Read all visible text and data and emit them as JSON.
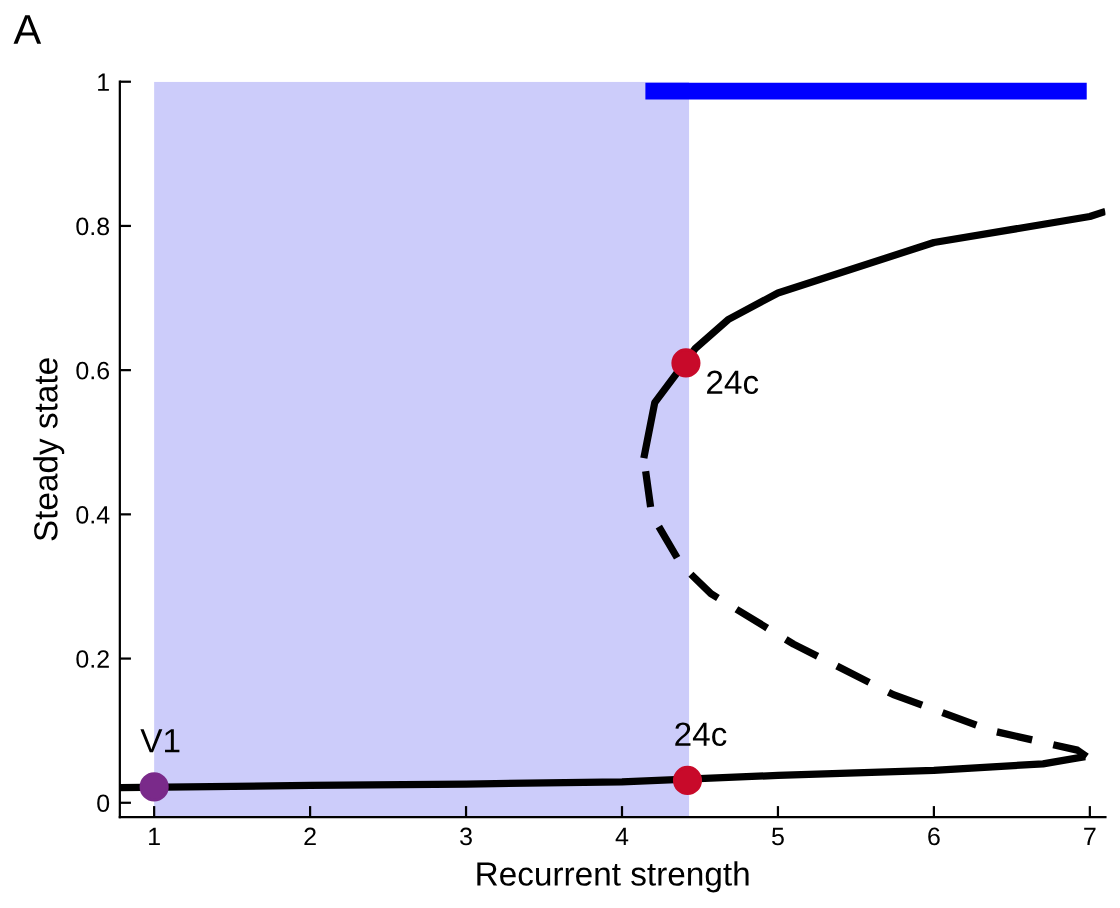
{
  "chart_data": {
    "type": "line",
    "xlabel": "Recurrent strength",
    "ylabel": "Steady state",
    "xlim": [
      0.78,
      7.1
    ],
    "ylim": [
      -0.02,
      1
    ],
    "xticks": [
      1,
      2,
      3,
      4,
      5,
      6,
      7
    ],
    "yticks": [
      0,
      0.2,
      0.4,
      0.6,
      0.8,
      1
    ],
    "grid": false,
    "legend": false,
    "bands": [
      {
        "axis": "x",
        "from": 1,
        "to": 4.43,
        "color": "#ccccfa"
      }
    ],
    "series": [
      {
        "color": "#000000",
        "line_style": "solid",
        "x": [
          0.78,
          2,
          3,
          4,
          5,
          6,
          6.7,
          6.97
        ],
        "values": [
          0.021,
          0.024,
          0.026,
          0.029,
          0.038,
          0.045,
          0.054,
          0.064
        ]
      },
      {
        "color": "#000000",
        "line_style": "dashed",
        "x": [
          6.98,
          6.92,
          6.37,
          5.74,
          5.1,
          4.57,
          4.38,
          4.19,
          4.14
        ],
        "values": [
          0.064,
          0.073,
          0.1,
          0.15,
          0.22,
          0.29,
          0.33,
          0.4,
          0.478
        ]
      },
      {
        "color": "#000000",
        "line_style": "solid",
        "x": [
          4.14,
          4.21,
          4.47,
          4.68,
          5,
          6,
          7,
          7.1
        ],
        "values": [
          0.478,
          0.555,
          0.63,
          0.67,
          0.707,
          0.777,
          0.813,
          0.82
        ]
      },
      {
        "color": "#0000ff",
        "line_style": "solid",
        "x": [
          4.15,
          6.98
        ],
        "values": [
          0.987,
          0.987
        ]
      },
      {
        "type": "scatter",
        "color": "#7a2a8a",
        "x": [
          1
        ],
        "values": [
          0.022
        ]
      },
      {
        "type": "scatter",
        "color": "#c80a2a",
        "x": [
          4.42,
          4.41
        ],
        "values": [
          0.031,
          0.61
        ]
      }
    ],
    "annotations": [
      "A",
      {
        "text": "V1",
        "x": 1,
        "y": 0.022
      },
      {
        "text": "24c",
        "x": 4.42,
        "y": 0.031
      },
      {
        "text": "24c",
        "x": 4.41,
        "y": 0.61
      }
    ]
  }
}
